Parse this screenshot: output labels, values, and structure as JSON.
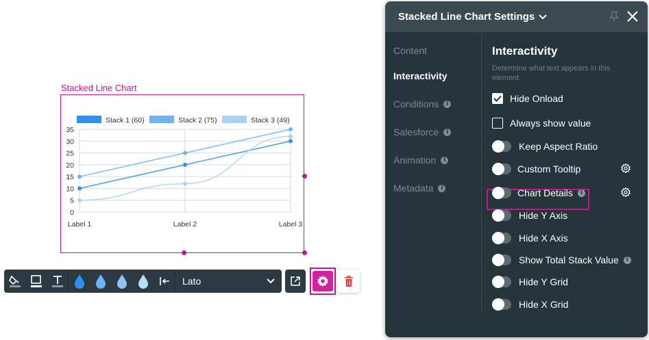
{
  "element": {
    "label": "Stacked Line Chart"
  },
  "chart_data": {
    "type": "line",
    "categories": [
      "Label 1",
      "Label 2",
      "Label 3"
    ],
    "series": [
      {
        "name": "Stack 1 (60)",
        "values": [
          10,
          20,
          30
        ],
        "color": "#2e90f0"
      },
      {
        "name": "Stack 2 (75)",
        "values": [
          15,
          25,
          35
        ],
        "color": "#6cb4f5"
      },
      {
        "name": "Stack 3 (49)",
        "values": [
          5,
          12,
          32
        ],
        "color": "#a9d2f8"
      }
    ],
    "yticks": [
      "0",
      "5",
      "10",
      "15",
      "20",
      "25",
      "30",
      "35"
    ],
    "ylim": [
      0,
      35
    ],
    "grid": true,
    "legend": "top"
  },
  "toolbar": {
    "font_value": "Lato",
    "icons": [
      "fill-icon",
      "border-icon",
      "text-icon",
      "drop-icon",
      "drop-icon",
      "drop-icon",
      "drop-icon",
      "align-left-icon",
      "chevron-down-icon",
      "external-link-icon",
      "gear-icon",
      "trash-icon"
    ]
  },
  "panel": {
    "title": "Stacked Line Chart Settings",
    "nav": [
      {
        "label": "Content",
        "active": false,
        "info": false
      },
      {
        "label": "Interactivity",
        "active": true,
        "info": false
      },
      {
        "label": "Conditions",
        "active": false,
        "info": true
      },
      {
        "label": "Salesforce",
        "active": false,
        "info": true
      },
      {
        "label": "Animation",
        "active": false,
        "info": true
      },
      {
        "label": "Metadata",
        "active": false,
        "info": true
      }
    ],
    "section_title": "Interactivity",
    "section_desc": "Determine what text appears in this element.",
    "info_glyph": "i",
    "options": [
      {
        "label": "Hide Onload",
        "control": "checkbox",
        "checked": true
      },
      {
        "label": "Always show value",
        "control": "checkbox",
        "checked": false
      },
      {
        "label": "Keep Aspect Ratio",
        "control": "toggle",
        "on": false
      },
      {
        "label": "Custom Tooltip",
        "control": "toggle",
        "on": false,
        "gear": true
      },
      {
        "label": "Chart Details",
        "control": "toggle",
        "on": false,
        "gear": true,
        "info": true
      },
      {
        "label": "Hide Y Axis",
        "control": "toggle",
        "on": false
      },
      {
        "label": "Hide X Axis",
        "control": "toggle",
        "on": false
      },
      {
        "label": "Show Total Stack Value",
        "control": "toggle",
        "on": false,
        "info": true
      },
      {
        "label": "Hide Y Grid",
        "control": "toggle",
        "on": false
      },
      {
        "label": "Hide X Grid",
        "control": "toggle",
        "on": false
      }
    ]
  }
}
